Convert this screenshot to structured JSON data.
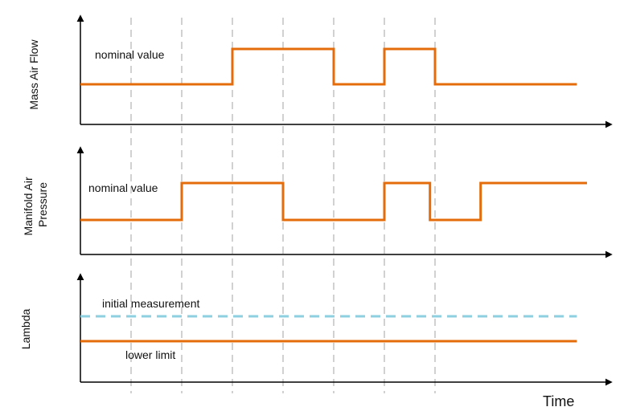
{
  "colors": {
    "signal": "#E46C0A",
    "reference": "#8ECFE0",
    "grid": "#B8B8B8",
    "axis": "#000000"
  },
  "x_axis": {
    "label": "Time"
  },
  "marker_times": [
    1,
    2,
    3,
    4,
    5,
    6,
    7
  ],
  "panels": [
    {
      "id": "mass-air-flow",
      "ylabel": "Mass Air Flow",
      "annotations": [
        {
          "text": "nominal value"
        }
      ],
      "signal": {
        "t": [
          0,
          3,
          3,
          5,
          5,
          6,
          6,
          7,
          7,
          9.8
        ],
        "level": [
          0,
          0,
          1,
          1,
          0,
          0,
          1,
          1,
          0,
          0
        ]
      }
    },
    {
      "id": "manifold-air-pressure",
      "ylabel": "Manifold Air Pressure",
      "ylabel_lines": [
        "Manifold Air",
        "Pressure"
      ],
      "annotations": [
        {
          "text": "nominal value"
        }
      ],
      "signal": {
        "t": [
          0,
          2,
          2,
          4,
          4,
          6,
          6,
          6.9,
          6.9,
          7.9,
          7.9,
          10
        ],
        "level": [
          0,
          0,
          1,
          1,
          0,
          0,
          1,
          1,
          0,
          0,
          1,
          1
        ]
      }
    },
    {
      "id": "lambda",
      "ylabel": "Lambda",
      "annotations": [
        {
          "text": "initial measurement"
        },
        {
          "text": "lower limit"
        }
      ],
      "reference_line": {
        "level": 1
      },
      "signal": {
        "t": [
          0,
          9.8
        ],
        "level": [
          0,
          0
        ]
      }
    }
  ]
}
